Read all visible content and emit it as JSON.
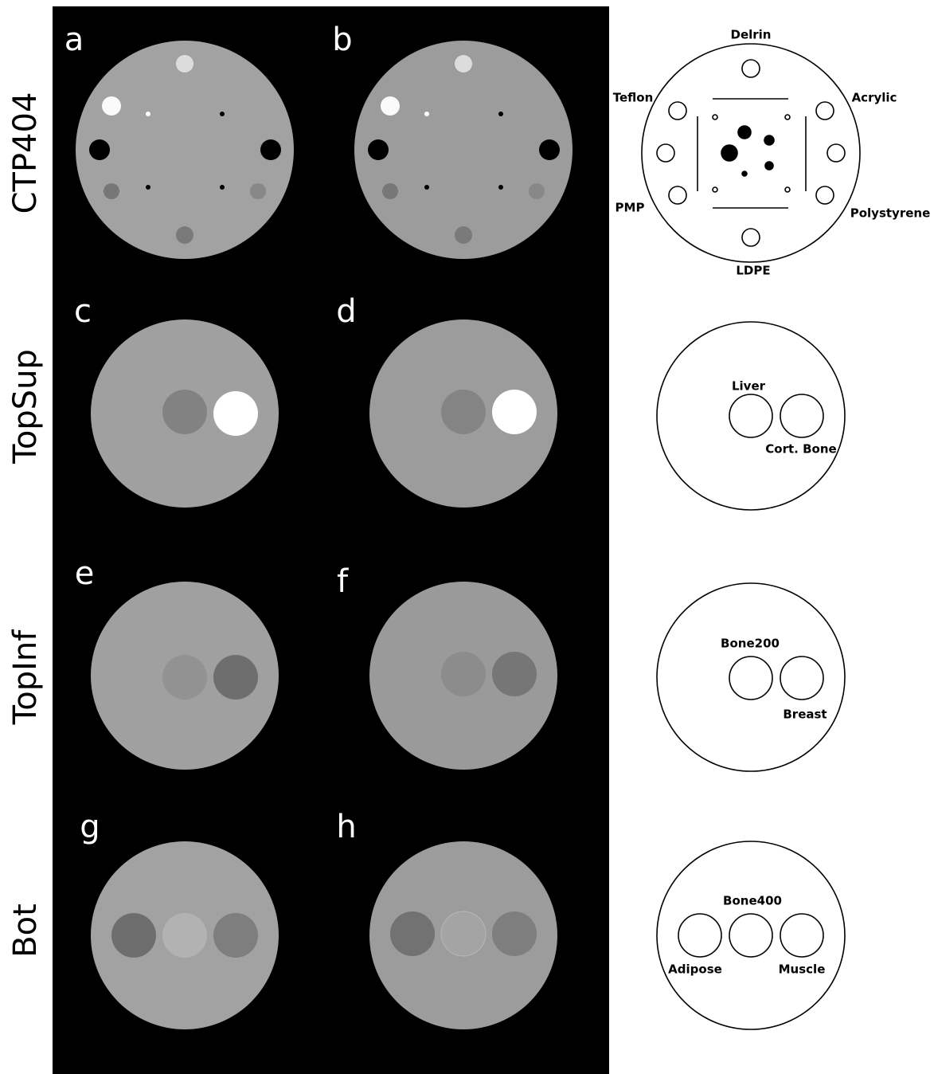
{
  "rows": [
    {
      "label": "CTP404",
      "panels": [
        "a",
        "b"
      ],
      "materials": [
        "Delrin",
        "Teflon",
        "Acrylic",
        "PMP",
        "Polystyrene",
        "LDPE"
      ]
    },
    {
      "label": "TopSup",
      "panels": [
        "c",
        "d"
      ],
      "materials": [
        "Liver",
        "Cort. Bone"
      ]
    },
    {
      "label": "TopInf",
      "panels": [
        "e",
        "f"
      ],
      "materials": [
        "Bone200",
        "Breast"
      ]
    },
    {
      "label": "Bot",
      "panels": [
        "g",
        "h"
      ],
      "materials": [
        "Bone400",
        "Adipose",
        "Muscle"
      ]
    }
  ]
}
